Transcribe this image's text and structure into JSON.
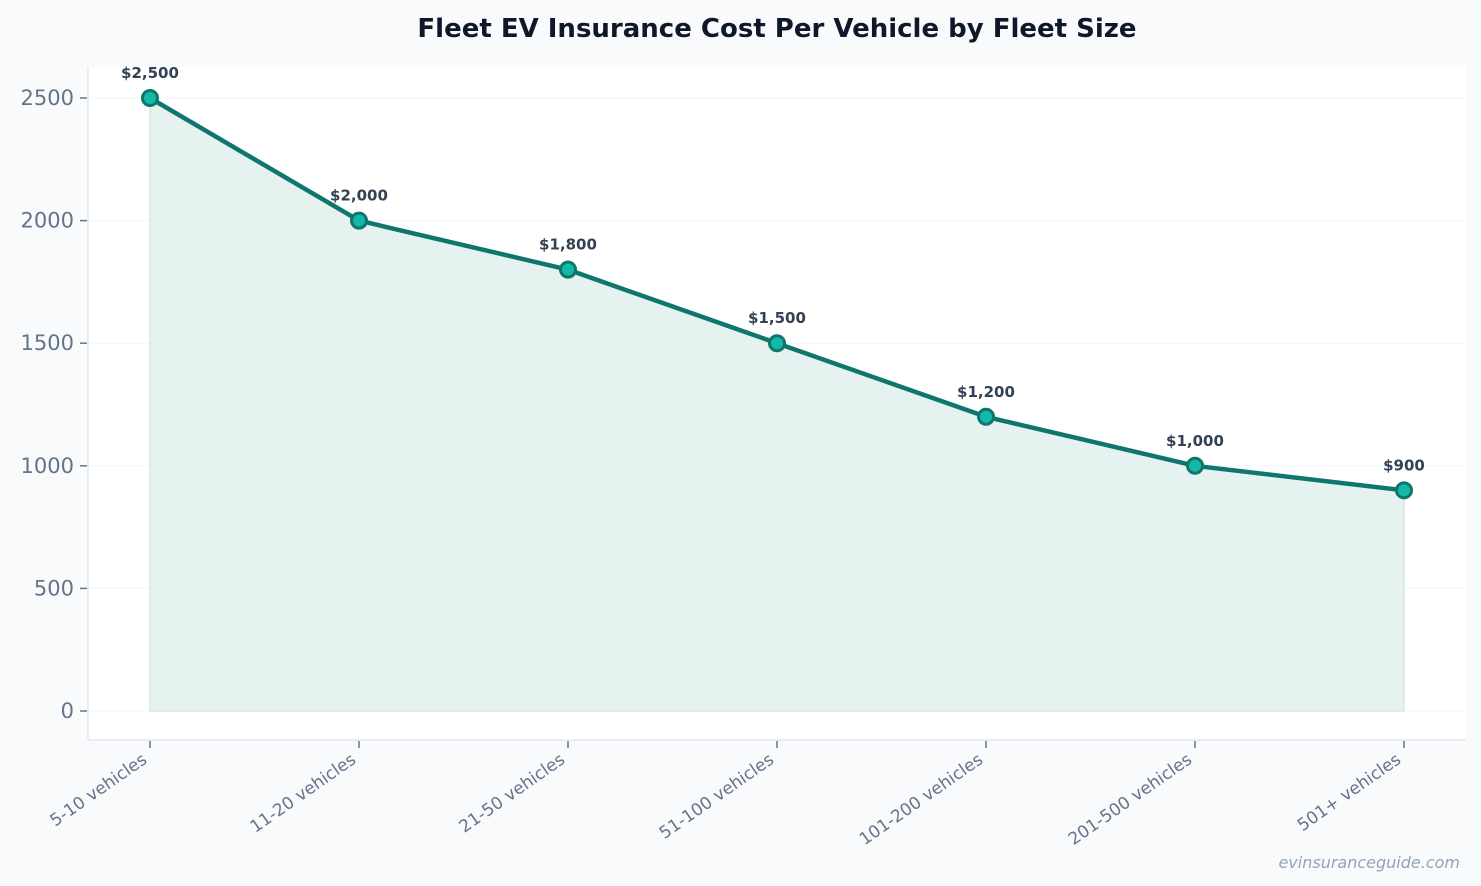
{
  "chart_data": {
    "type": "area",
    "title": "Fleet EV Insurance Cost Per Vehicle by Fleet Size",
    "xlabel": "",
    "ylabel": "",
    "categories": [
      "5-10 vehicles",
      "11-20 vehicles",
      "21-50 vehicles",
      "51-100 vehicles",
      "101-200 vehicles",
      "201-500 vehicles",
      "501+ vehicles"
    ],
    "values": [
      2500,
      2000,
      1800,
      1500,
      1200,
      1000,
      900
    ],
    "data_labels": [
      "$2,500",
      "$2,000",
      "$1,800",
      "$1,500",
      "$1,200",
      "$1,000",
      "$900"
    ],
    "yticks": [
      0,
      500,
      1000,
      1500,
      2000,
      2500
    ],
    "ylim": [
      -125,
      2625
    ],
    "grid": true,
    "legend": "none",
    "colors": {
      "line": "#0f766e",
      "marker_fill": "#14b8a6",
      "area_fill": "#e6f2ef",
      "background": "#f8fafc",
      "plot_bg": "#ffffff"
    }
  },
  "watermark": "evinsuranceguide.com"
}
